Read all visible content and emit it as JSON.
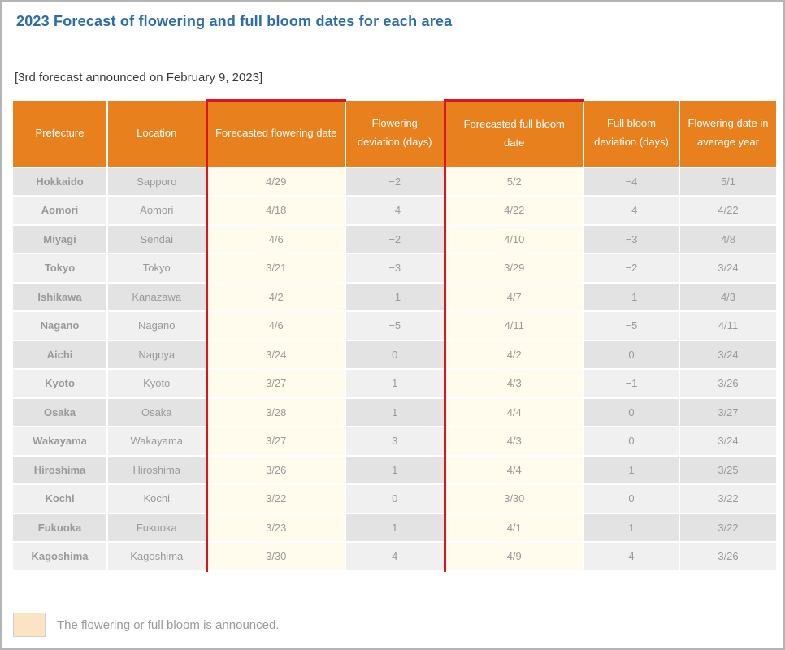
{
  "page": {
    "title": "2023 Forecast of flowering and full bloom dates for each area",
    "subtitle": "[3rd forecast announced on February 9, 2023]"
  },
  "table": {
    "columns": [
      {
        "key": "prefecture",
        "label": "Prefecture",
        "highlight": false
      },
      {
        "key": "location",
        "label": "Location",
        "highlight": false
      },
      {
        "key": "flowering-date",
        "label": "Forecasted flowering date",
        "highlight": true
      },
      {
        "key": "flowering-deviation",
        "label": "Flowering deviation (days)",
        "highlight": false
      },
      {
        "key": "full-bloom-date",
        "label": "Forecasted full bloom date",
        "highlight": true
      },
      {
        "key": "full-bloom-deviation",
        "label": "Full bloom deviation (days)",
        "highlight": false
      },
      {
        "key": "average-date",
        "label": "Flowering date in average year",
        "highlight": false
      }
    ],
    "rows": [
      [
        "Hokkaido",
        "Sapporo",
        "4/29",
        "−2",
        "5/2",
        "−4",
        "5/1"
      ],
      [
        "Aomori",
        "Aomori",
        "4/18",
        "−4",
        "4/22",
        "−4",
        "4/22"
      ],
      [
        "Miyagi",
        "Sendai",
        "4/6",
        "−2",
        "4/10",
        "−3",
        "4/8"
      ],
      [
        "Tokyo",
        "Tokyo",
        "3/21",
        "−3",
        "3/29",
        "−2",
        "3/24"
      ],
      [
        "Ishikawa",
        "Kanazawa",
        "4/2",
        "−1",
        "4/7",
        "−1",
        "4/3"
      ],
      [
        "Nagano",
        "Nagano",
        "4/6",
        "−5",
        "4/11",
        "−5",
        "4/11"
      ],
      [
        "Aichi",
        "Nagoya",
        "3/24",
        "0",
        "4/2",
        "0",
        "3/24"
      ],
      [
        "Kyoto",
        "Kyoto",
        "3/27",
        "1",
        "4/3",
        "−1",
        "3/26"
      ],
      [
        "Osaka",
        "Osaka",
        "3/28",
        "1",
        "4/4",
        "0",
        "3/27"
      ],
      [
        "Wakayama",
        "Wakayama",
        "3/27",
        "3",
        "4/3",
        "0",
        "3/24"
      ],
      [
        "Hiroshima",
        "Hiroshima",
        "3/26",
        "1",
        "4/4",
        "1",
        "3/25"
      ],
      [
        "Kochi",
        "Kochi",
        "3/22",
        "0",
        "3/30",
        "0",
        "3/22"
      ],
      [
        "Fukuoka",
        "Fukuoka",
        "3/23",
        "1",
        "4/1",
        "1",
        "3/22"
      ],
      [
        "Kagoshima",
        "Kagoshima",
        "3/30",
        "4",
        "4/9",
        "4",
        "3/26"
      ]
    ]
  },
  "legend": {
    "label": "The flowering or full bloom is announced.",
    "swatch_color": "#fce3c3"
  },
  "colors": {
    "title_blue": "#2c6ca8",
    "header_orange": "#e8801e",
    "highlight_cream": "#fffcee",
    "highlight_border_red": "#dc1420",
    "row_dark": "#e3e3e3",
    "row_light": "#f0f0f0"
  }
}
